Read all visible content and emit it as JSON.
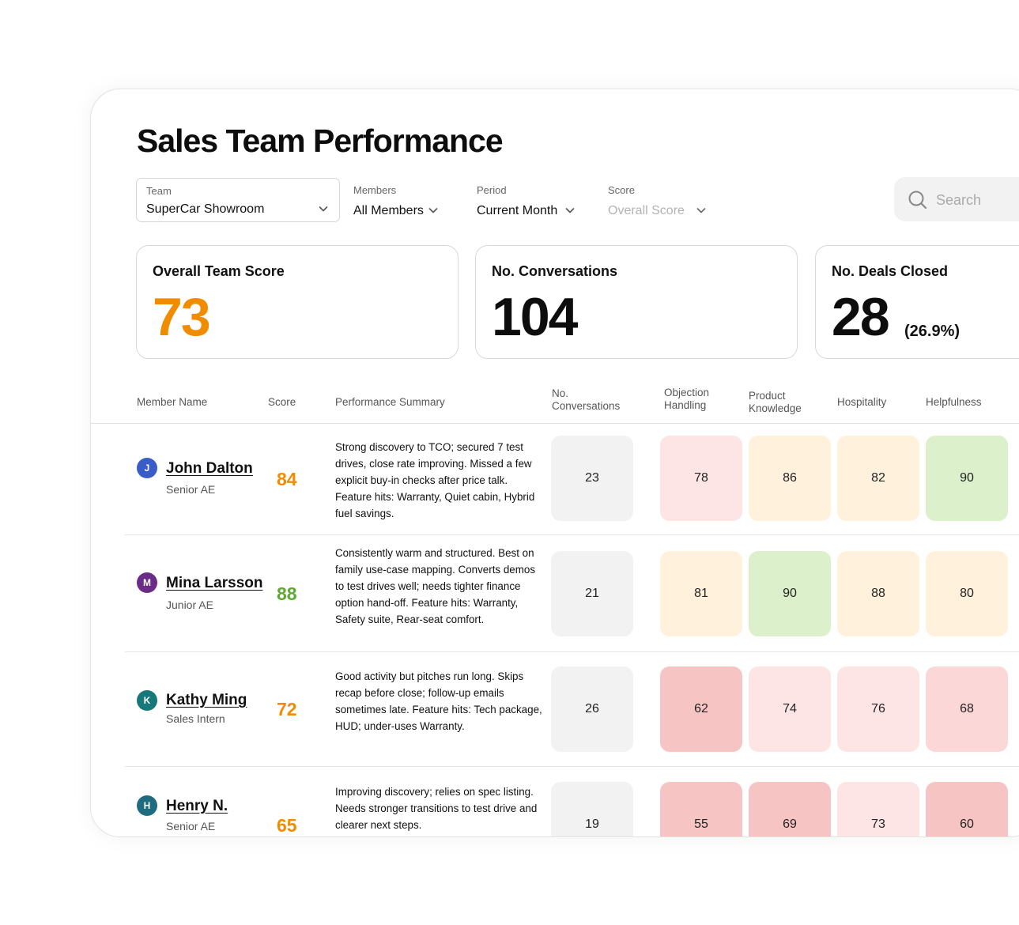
{
  "page": {
    "title": "Sales Team Performance"
  },
  "filters": {
    "team": {
      "label": "Team",
      "value": "SuperCar Showroom"
    },
    "members": {
      "label": "Members",
      "value": "All Members"
    },
    "period": {
      "label": "Period",
      "value": "Current Month"
    },
    "score": {
      "label": "Score",
      "value": "Overall Score"
    }
  },
  "search": {
    "placeholder": "Search"
  },
  "stats": {
    "team_score": {
      "title": "Overall Team Score",
      "value": "73"
    },
    "conversations": {
      "title": "No. Conversations",
      "value": "104"
    },
    "deals": {
      "title": "No. Deals Closed",
      "value": "28",
      "sub": "(26.9%)"
    }
  },
  "table": {
    "headers": {
      "member": "Member Name",
      "score": "Score",
      "summary": "Performance Summary",
      "conversations": "No.\nConversations",
      "objection": "Objection\nHandling",
      "product": "Product\nKnowledge",
      "hospitality": "Hospitality",
      "helpfulness": "Helpfulness"
    },
    "rows": [
      {
        "initial": "J",
        "name": "John Dalton",
        "role": "Senior AE",
        "score": "84",
        "summary": "Strong discovery to TCO; secured 7 test drives, close rate improving. Missed a few explicit buy-in checks after price talk. Feature hits: Warranty, Quiet cabin, Hybrid fuel savings.",
        "conversations": "23",
        "objection": "78",
        "product": "86",
        "hospitality": "82",
        "helpfulness": "90"
      },
      {
        "initial": "M",
        "name": "Mina Larsson",
        "role": "Junior AE",
        "score": "88",
        "summary": "Consistently warm and structured. Best on family use-case mapping. Converts demos to test drives well; needs tighter finance option hand-off. Feature hits: Warranty, Safety suite, Rear-seat comfort.",
        "conversations": "21",
        "objection": "81",
        "product": "90",
        "hospitality": "88",
        "helpfulness": "80"
      },
      {
        "initial": "K",
        "name": "Kathy Ming",
        "role": "Sales Intern",
        "score": "72",
        "summary": "Good activity but pitches run long. Skips recap before close; follow-up emails sometimes late. Feature hits: Tech package, HUD; under-uses Warranty.",
        "conversations": "26",
        "objection": "62",
        "product": "74",
        "hospitality": "76",
        "helpfulness": "68"
      },
      {
        "initial": "H",
        "name": "Henry N.",
        "role": "Senior AE",
        "score": "65",
        "summary": "Improving discovery; relies on spec listing. Needs stronger transitions to test drive and clearer next steps.",
        "conversations": "19",
        "objection": "55",
        "product": "69",
        "hospitality": "73",
        "helpfulness": "60"
      }
    ]
  },
  "colors": {
    "score_orange": "#f08c00",
    "score_green": "#5fa832",
    "cell_neutral": "#f2f2f2",
    "cell_green": "#dcf0cc",
    "cell_amber": "#fff1dc",
    "cell_pink_light": "#fde5e5",
    "cell_pink": "#fbd7d7",
    "cell_red": "#f7c4c4",
    "avatar_blue": "#3a5cc7",
    "avatar_purple": "#6a2c86",
    "avatar_teal": "#17787a",
    "avatar_teal_dark": "#1f6c80"
  },
  "icons": {
    "search": "search-icon",
    "dropdown": "chevron-down-icon"
  }
}
